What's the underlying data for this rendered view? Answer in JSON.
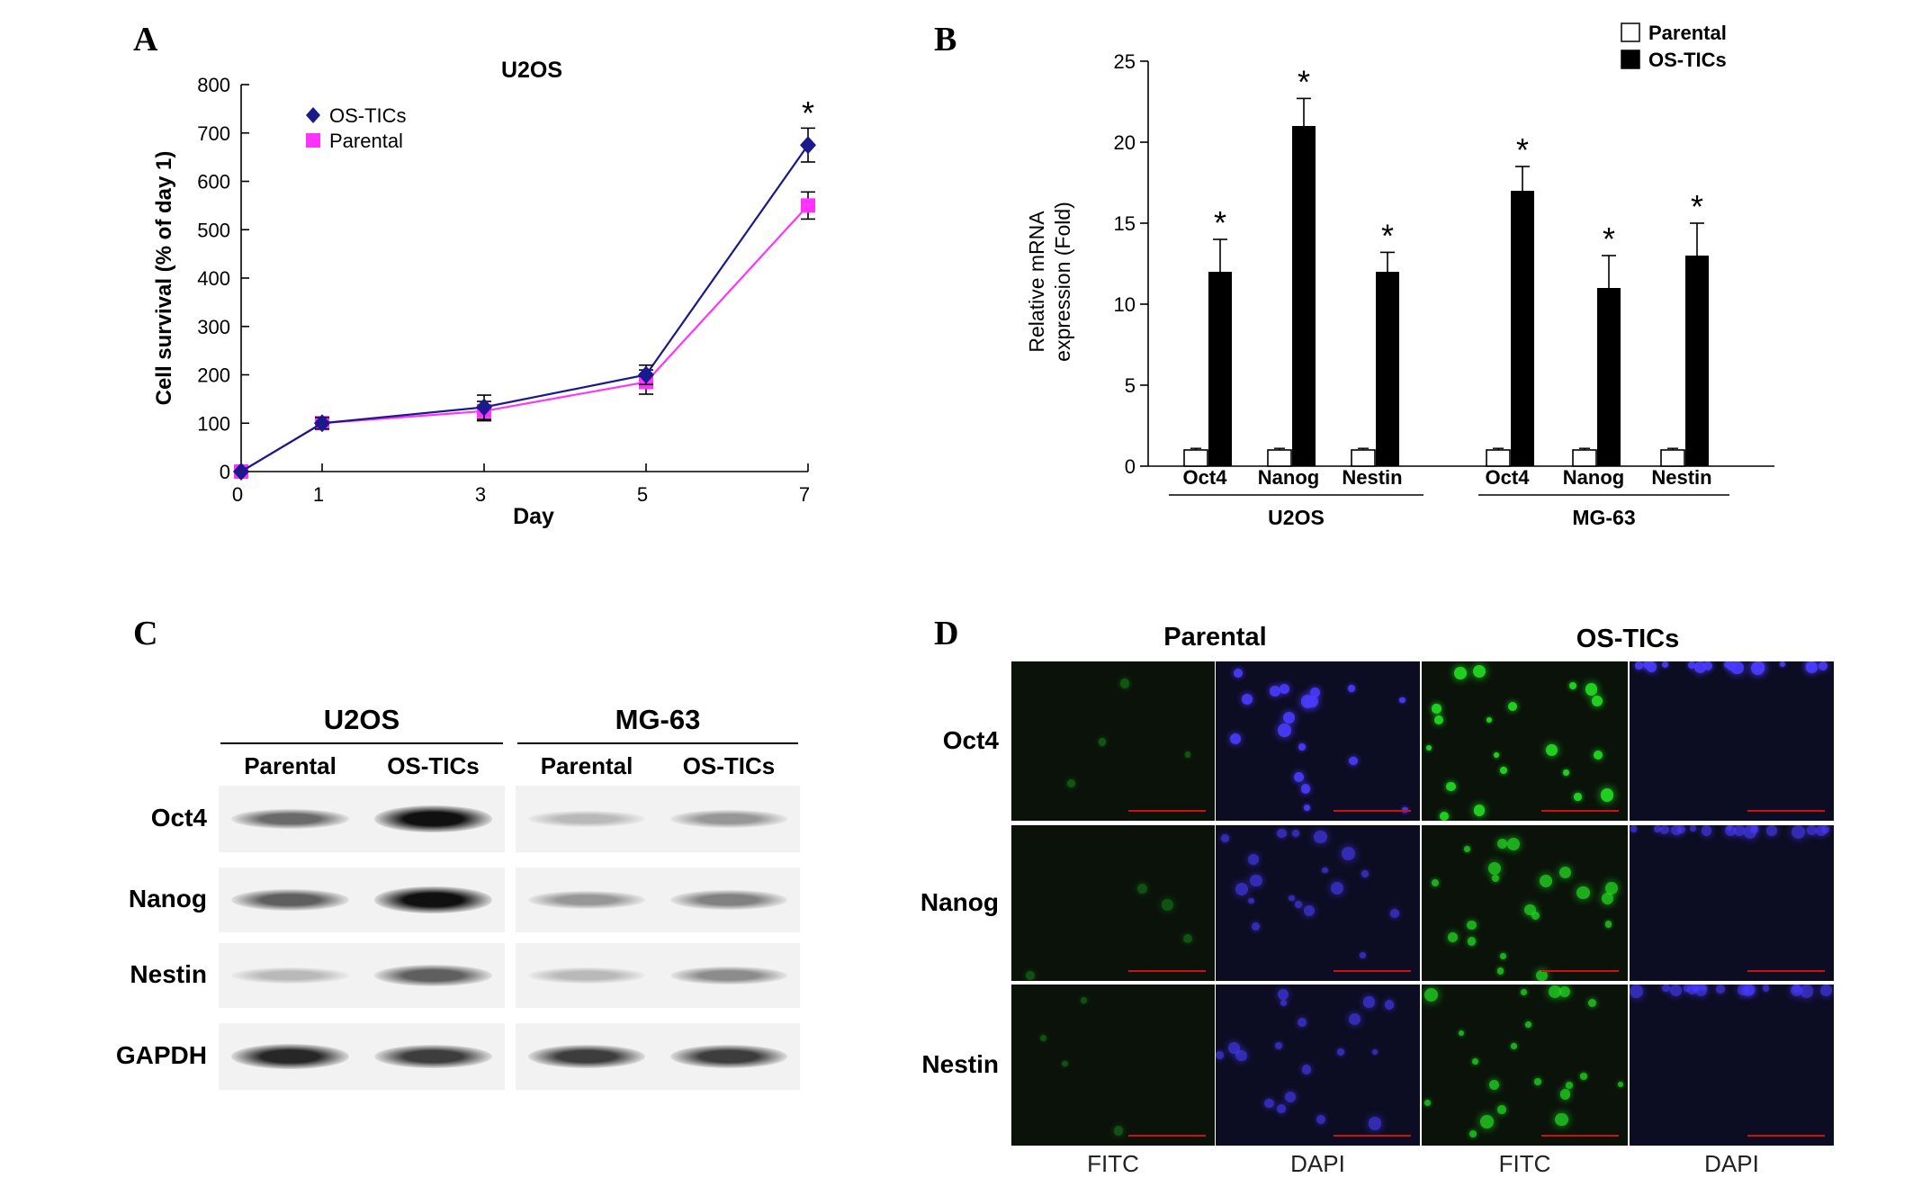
{
  "panels": {
    "A": {
      "letter": "A",
      "chart_data": {
        "type": "line",
        "title": "U2OS",
        "xlabel": "Day",
        "ylabel": "Cell survival (% of day 1)",
        "x_ticks": [
          "0",
          "1",
          "3",
          "5",
          "7"
        ],
        "y_ticks": [
          "0",
          "100",
          "200",
          "300",
          "400",
          "500",
          "600",
          "700",
          "800"
        ],
        "ylim": [
          0,
          800
        ],
        "legend_position": "top-left",
        "series": [
          {
            "name": "OS-TICs",
            "marker": "diamond",
            "color": "#1a1a8c",
            "x": [
              "0",
              "1",
              "3",
              "5",
              "7"
            ],
            "values": [
              0,
              100,
              133,
              200,
              675
            ],
            "errors": [
              0,
              12,
              25,
              20,
              35
            ]
          },
          {
            "name": "Parental",
            "marker": "square",
            "color": "#ff33ff",
            "x": [
              "0",
              "1",
              "3",
              "5",
              "7"
            ],
            "values": [
              0,
              100,
              125,
              185,
              550
            ],
            "errors": [
              0,
              10,
              20,
              25,
              28
            ]
          }
        ],
        "significance": [
          {
            "x": "7",
            "label": "*"
          }
        ]
      }
    },
    "B": {
      "letter": "B",
      "chart_data": {
        "type": "bar",
        "ylabel_lines": [
          "Relative mRNA",
          "expression (Fold)"
        ],
        "y_ticks": [
          "0",
          "5",
          "10",
          "15",
          "20",
          "25"
        ],
        "ylim": [
          0,
          25
        ],
        "legend_position": "top-right",
        "groups": [
          {
            "name": "U2OS",
            "categories": [
              "Oct4",
              "Nanog",
              "Nestin"
            ]
          },
          {
            "name": "MG-63",
            "categories": [
              "Oct4",
              "Nanog",
              "Nestin"
            ]
          }
        ],
        "series": [
          {
            "name": "Parental",
            "color": "#ffffff",
            "values": [
              1,
              1,
              1,
              1,
              1,
              1
            ],
            "errors": [
              0.1,
              0.1,
              0.1,
              0.1,
              0.1,
              0.1
            ]
          },
          {
            "name": "OS-TICs",
            "color": "#000000",
            "values": [
              12,
              21,
              12,
              17,
              11,
              13
            ],
            "errors": [
              2,
              1.7,
              1.2,
              1.5,
              2,
              2
            ]
          }
        ],
        "significance_label": "*"
      }
    },
    "C": {
      "letter": "C",
      "cell_lines": [
        {
          "name": "U2OS",
          "lanes": [
            "Parental",
            "OS-TICs"
          ]
        },
        {
          "name": "MG-63",
          "lanes": [
            "Parental",
            "OS-TICs"
          ]
        }
      ],
      "proteins": [
        "Oct4",
        "Nanog",
        "Nestin",
        "GAPDH"
      ],
      "band_intensity": {
        "Oct4": [
          [
            0.55,
            0.95
          ],
          [
            0.2,
            0.35
          ]
        ],
        "Nanog": [
          [
            0.6,
            0.95
          ],
          [
            0.35,
            0.45
          ]
        ],
        "Nestin": [
          [
            0.2,
            0.6
          ],
          [
            0.2,
            0.4
          ]
        ],
        "GAPDH": [
          [
            0.85,
            0.75
          ],
          [
            0.75,
            0.75
          ]
        ]
      }
    },
    "D": {
      "letter": "D",
      "groups": [
        "Parental",
        "OS-TICs"
      ],
      "rows": [
        "Oct4",
        "Nanog",
        "Nestin"
      ],
      "columns": [
        "FITC",
        "DAPI",
        "FITC",
        "DAPI"
      ],
      "stain_colors": {
        "FITC": "#22dd22",
        "DAPI": "#4a3cff"
      },
      "fitc_signal": {
        "Parental": 0.1,
        "OS-TICs": 0.9
      }
    }
  }
}
